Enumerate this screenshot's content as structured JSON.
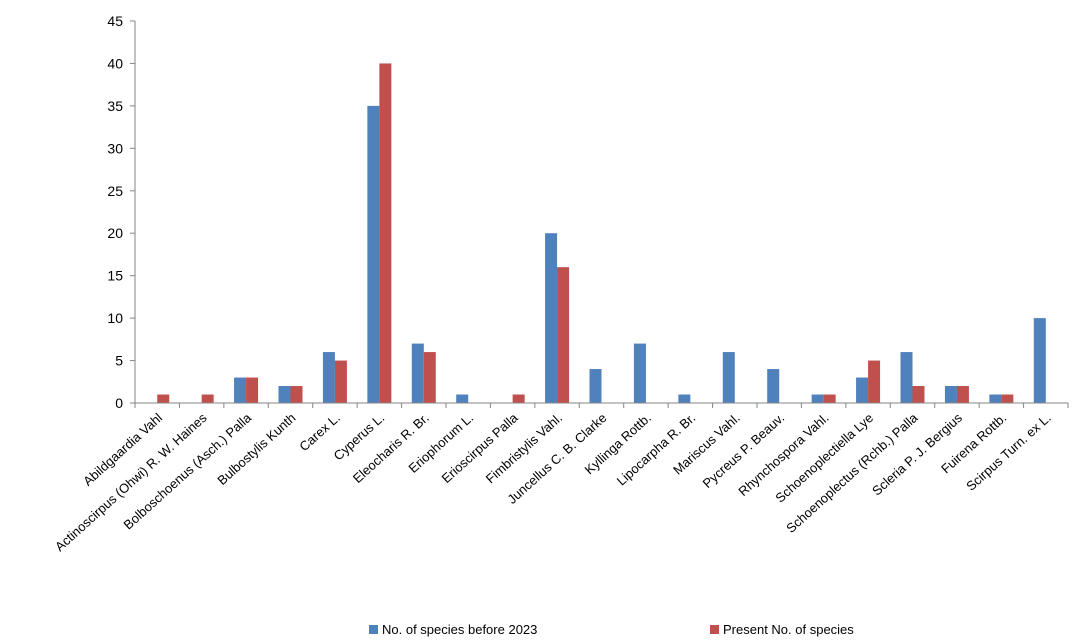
{
  "chart_data": {
    "type": "bar",
    "categories": [
      "Abildgaardia Vahl",
      "Actinoscirpus (Ohwi) R. W. Haines",
      "Bolboschoenus (Asch.) Palla",
      "Bulbostylis Kunth",
      "Carex L.",
      "Cyperus L.",
      "Eleocharis R. Br.",
      "Eriophorum L.",
      "Erioscirpus Palla",
      "Fimbristylis Vahl.",
      "Juncellus C. B. Clarke",
      "Kyllinga Rottb.",
      "Lipocarpha R. Br.",
      "Mariscus Vahl.",
      "Pycreus P. Beauv.",
      "Rhynchospora Vahl.",
      "Schoenoplectiella Lye",
      "Schoenoplectus (Rchb.) Palla",
      "Scleria P. J. Bergius",
      "Fuirena Rottb.",
      "Scirpus Turn. ex L."
    ],
    "series": [
      {
        "name": "No. of species before 2023",
        "color": "#4F81BD",
        "values": [
          0,
          0,
          3,
          2,
          6,
          35,
          7,
          1,
          0,
          20,
          4,
          7,
          1,
          6,
          4,
          1,
          3,
          6,
          2,
          1,
          10
        ]
      },
      {
        "name": "Present No. of species",
        "color": "#C0504D",
        "values": [
          1,
          1,
          3,
          2,
          5,
          40,
          6,
          0,
          1,
          16,
          0,
          0,
          0,
          0,
          0,
          1,
          5,
          2,
          2,
          1,
          0
        ]
      }
    ],
    "yticks": [
      "0",
      "5",
      "10",
      "15",
      "20",
      "25",
      "30",
      "35",
      "40",
      "45"
    ],
    "ylim": [
      0,
      45
    ],
    "grid": false,
    "legend_position": "bottom"
  }
}
